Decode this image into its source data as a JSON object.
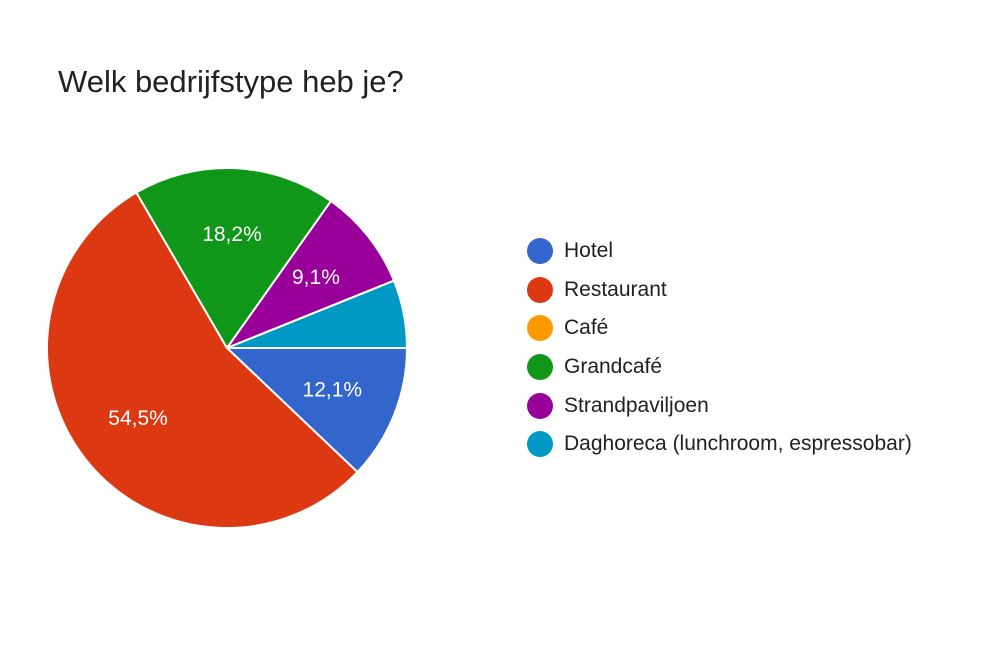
{
  "chart_data": {
    "type": "pie",
    "title": "Welk bedrijfstype heb je?",
    "slices": [
      {
        "label": "Hotel",
        "value": 12.1,
        "value_label": "12,1%",
        "color": "#3366cc"
      },
      {
        "label": "Restaurant",
        "value": 54.5,
        "value_label": "54,5%",
        "color": "#dc3912"
      },
      {
        "label": "Café",
        "value": 0,
        "value_label": "",
        "color": "#ff9900"
      },
      {
        "label": "Grandcafé",
        "value": 18.2,
        "value_label": "18,2%",
        "color": "#109618"
      },
      {
        "label": "Strandpaviljoen",
        "value": 9.1,
        "value_label": "9,1%",
        "color": "#990099"
      },
      {
        "label": "Daghoreca (lunchroom, espressobar)",
        "value": 6.1,
        "value_label": "",
        "color": "#0099c6"
      }
    ],
    "legend_position": "right"
  }
}
